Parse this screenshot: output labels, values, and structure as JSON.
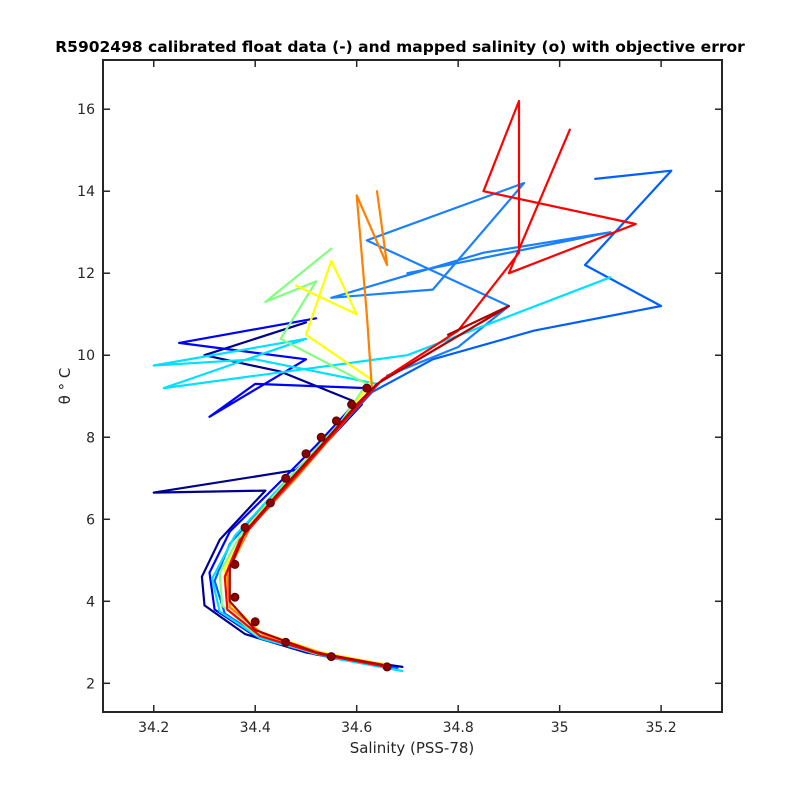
{
  "chart_data": {
    "type": "line",
    "title": "R5902498 calibrated float data (-) and mapped salinity (o) with objective error",
    "xlabel": "Salinity (PSS-78)",
    "ylabel": "θ ° C",
    "xlim": [
      34.1,
      35.32
    ],
    "ylim": [
      1.3,
      17.2
    ],
    "xticks": [
      34.2,
      34.4,
      34.6,
      34.8,
      35,
      35.2
    ],
    "xtick_labels": [
      "34.2",
      "34.4",
      "34.6",
      "34.8",
      "35",
      "35.2"
    ],
    "yticks": [
      2,
      4,
      6,
      8,
      10,
      12,
      14,
      16
    ],
    "ytick_labels": [
      "2",
      "4",
      "6",
      "8",
      "10",
      "12",
      "14",
      "16"
    ],
    "grid": false,
    "colormap": "jet",
    "colormap_stops": [
      "#00008f",
      "#0000ff",
      "#0080ff",
      "#00ffff",
      "#80ff80",
      "#ffff00",
      "#ff8000",
      "#ff0000",
      "#800000"
    ],
    "mapped_marker_color": "#8b0000",
    "base_profile": [
      {
        "s": 34.67,
        "t": 2.35
      },
      {
        "s": 34.58,
        "t": 2.55
      },
      {
        "s": 34.48,
        "t": 2.85
      },
      {
        "s": 34.4,
        "t": 3.3
      },
      {
        "s": 34.35,
        "t": 3.9
      },
      {
        "s": 34.345,
        "t": 4.6
      },
      {
        "s": 34.37,
        "t": 5.3
      },
      {
        "s": 34.42,
        "t": 6.1
      },
      {
        "s": 34.48,
        "t": 6.9
      },
      {
        "s": 34.53,
        "t": 7.7
      },
      {
        "s": 34.58,
        "t": 8.4
      },
      {
        "s": 34.63,
        "t": 9.1
      },
      {
        "s": 34.66,
        "t": 9.5
      }
    ],
    "mapped_salinity": [
      {
        "s": 34.66,
        "t": 2.4
      },
      {
        "s": 34.55,
        "t": 2.65
      },
      {
        "s": 34.46,
        "t": 3.0
      },
      {
        "s": 34.4,
        "t": 3.5
      },
      {
        "s": 34.36,
        "t": 4.1
      },
      {
        "s": 34.36,
        "t": 4.9
      },
      {
        "s": 34.38,
        "t": 5.8
      },
      {
        "s": 34.43,
        "t": 6.4
      },
      {
        "s": 34.46,
        "t": 7.0
      },
      {
        "s": 34.5,
        "t": 7.6
      },
      {
        "s": 34.53,
        "t": 8.0
      },
      {
        "s": 34.56,
        "t": 8.4
      },
      {
        "s": 34.59,
        "t": 8.8
      },
      {
        "s": 34.62,
        "t": 9.2
      }
    ],
    "series": [
      {
        "color": "#00008f",
        "values": [
          {
            "s": 34.69,
            "t": 2.4
          },
          {
            "s": 34.5,
            "t": 2.75
          },
          {
            "s": 34.38,
            "t": 3.2
          },
          {
            "s": 34.3,
            "t": 3.9
          },
          {
            "s": 34.295,
            "t": 4.6
          },
          {
            "s": 34.33,
            "t": 5.5
          },
          {
            "s": 34.39,
            "t": 6.3
          },
          {
            "s": 34.42,
            "t": 6.7
          },
          {
            "s": 34.2,
            "t": 6.65
          },
          {
            "s": 34.48,
            "t": 7.2
          },
          {
            "s": 34.55,
            "t": 8.0
          },
          {
            "s": 34.61,
            "t": 8.8
          },
          {
            "s": 34.45,
            "t": 9.6
          },
          {
            "s": 34.3,
            "t": 10.0
          },
          {
            "s": 34.5,
            "t": 10.8
          }
        ]
      },
      {
        "color": "#0000ff",
        "values": [
          {
            "s": 34.68,
            "t": 2.38
          },
          {
            "s": 34.52,
            "t": 2.7
          },
          {
            "s": 34.4,
            "t": 3.15
          },
          {
            "s": 34.32,
            "t": 3.8
          },
          {
            "s": 34.31,
            "t": 4.7
          },
          {
            "s": 34.35,
            "t": 5.7
          },
          {
            "s": 34.44,
            "t": 6.8
          },
          {
            "s": 34.52,
            "t": 7.8
          },
          {
            "s": 34.58,
            "t": 8.6
          },
          {
            "s": 34.62,
            "t": 9.2
          },
          {
            "s": 34.4,
            "t": 9.3
          },
          {
            "s": 34.31,
            "t": 8.5
          },
          {
            "s": 34.5,
            "t": 9.9
          },
          {
            "s": 34.25,
            "t": 10.3
          },
          {
            "s": 34.52,
            "t": 10.9
          }
        ]
      },
      {
        "color": "#0060ff",
        "values": [
          {
            "s": 34.68,
            "t": 2.36
          },
          {
            "s": 34.55,
            "t": 2.62
          },
          {
            "s": 34.42,
            "t": 3.05
          },
          {
            "s": 34.34,
            "t": 3.7
          },
          {
            "s": 34.32,
            "t": 4.5
          },
          {
            "s": 34.35,
            "t": 5.4
          },
          {
            "s": 34.42,
            "t": 6.4
          },
          {
            "s": 34.5,
            "t": 7.4
          },
          {
            "s": 34.57,
            "t": 8.3
          },
          {
            "s": 34.63,
            "t": 9.1
          },
          {
            "s": 34.75,
            "t": 9.9
          },
          {
            "s": 34.95,
            "t": 10.6
          },
          {
            "s": 35.2,
            "t": 11.2
          },
          {
            "s": 35.05,
            "t": 12.2
          },
          {
            "s": 35.22,
            "t": 14.5
          },
          {
            "s": 35.07,
            "t": 14.3
          }
        ]
      },
      {
        "color": "#1a80ff",
        "values": [
          {
            "s": 34.66,
            "t": 9.5
          },
          {
            "s": 34.8,
            "t": 10.2
          },
          {
            "s": 34.9,
            "t": 11.2
          },
          {
            "s": 34.62,
            "t": 12.8
          },
          {
            "s": 34.93,
            "t": 14.2
          },
          {
            "s": 34.75,
            "t": 11.6
          },
          {
            "s": 34.55,
            "t": 11.4
          },
          {
            "s": 34.85,
            "t": 12.5
          },
          {
            "s": 35.1,
            "t": 13.0
          },
          {
            "s": 34.7,
            "t": 12.0
          }
        ]
      },
      {
        "color": "#00e0ff",
        "values": [
          {
            "s": 34.69,
            "t": 2.3
          },
          {
            "s": 34.56,
            "t": 2.6
          },
          {
            "s": 34.41,
            "t": 3.1
          },
          {
            "s": 34.33,
            "t": 3.75
          },
          {
            "s": 34.315,
            "t": 4.55
          },
          {
            "s": 34.36,
            "t": 5.6
          },
          {
            "s": 34.45,
            "t": 6.8
          },
          {
            "s": 34.56,
            "t": 8.2
          },
          {
            "s": 34.64,
            "t": 9.3
          },
          {
            "s": 34.4,
            "t": 9.9
          },
          {
            "s": 34.2,
            "t": 9.75
          },
          {
            "s": 34.5,
            "t": 10.4
          },
          {
            "s": 34.22,
            "t": 9.2
          },
          {
            "s": 34.7,
            "t": 10.0
          },
          {
            "s": 35.1,
            "t": 11.9
          }
        ]
      },
      {
        "color": "#80ff80",
        "values": [
          {
            "s": 34.66,
            "t": 2.42
          },
          {
            "s": 34.52,
            "t": 2.72
          },
          {
            "s": 34.4,
            "t": 3.2
          },
          {
            "s": 34.335,
            "t": 3.9
          },
          {
            "s": 34.33,
            "t": 4.7
          },
          {
            "s": 34.37,
            "t": 5.6
          },
          {
            "s": 34.46,
            "t": 6.9
          },
          {
            "s": 34.57,
            "t": 8.4
          },
          {
            "s": 34.62,
            "t": 9.3
          },
          {
            "s": 34.45,
            "t": 10.4
          },
          {
            "s": 34.52,
            "t": 11.8
          },
          {
            "s": 34.42,
            "t": 11.3
          },
          {
            "s": 34.55,
            "t": 12.6
          }
        ]
      },
      {
        "color": "#ffff00",
        "values": [
          {
            "s": 34.66,
            "t": 2.45
          },
          {
            "s": 34.53,
            "t": 2.75
          },
          {
            "s": 34.41,
            "t": 3.25
          },
          {
            "s": 34.35,
            "t": 3.95
          },
          {
            "s": 34.34,
            "t": 4.8
          },
          {
            "s": 34.39,
            "t": 5.9
          },
          {
            "s": 34.48,
            "t": 7.1
          },
          {
            "s": 34.58,
            "t": 8.5
          },
          {
            "s": 34.63,
            "t": 9.4
          },
          {
            "s": 34.5,
            "t": 10.5
          },
          {
            "s": 34.55,
            "t": 12.3
          },
          {
            "s": 34.6,
            "t": 11.0
          },
          {
            "s": 34.48,
            "t": 11.7
          }
        ]
      },
      {
        "color": "#ff8000",
        "values": [
          {
            "s": 34.665,
            "t": 2.43
          },
          {
            "s": 34.54,
            "t": 2.7
          },
          {
            "s": 34.415,
            "t": 3.2
          },
          {
            "s": 34.35,
            "t": 3.85
          },
          {
            "s": 34.345,
            "t": 4.7
          },
          {
            "s": 34.39,
            "t": 5.8
          },
          {
            "s": 34.48,
            "t": 7.0
          },
          {
            "s": 34.57,
            "t": 8.3
          },
          {
            "s": 34.63,
            "t": 9.2
          },
          {
            "s": 34.62,
            "t": 11.0
          },
          {
            "s": 34.6,
            "t": 13.9
          },
          {
            "s": 34.66,
            "t": 12.2
          },
          {
            "s": 34.64,
            "t": 14.0
          }
        ]
      },
      {
        "color": "#ff0000",
        "values": [
          {
            "s": 34.66,
            "t": 2.4
          },
          {
            "s": 34.53,
            "t": 2.7
          },
          {
            "s": 34.41,
            "t": 3.15
          },
          {
            "s": 34.345,
            "t": 3.8
          },
          {
            "s": 34.34,
            "t": 4.6
          },
          {
            "s": 34.37,
            "t": 5.5
          },
          {
            "s": 34.44,
            "t": 6.5
          },
          {
            "s": 34.52,
            "t": 7.6
          },
          {
            "s": 34.59,
            "t": 8.6
          },
          {
            "s": 34.65,
            "t": 9.4
          },
          {
            "s": 34.8,
            "t": 10.6
          },
          {
            "s": 34.92,
            "t": 12.5
          },
          {
            "s": 34.92,
            "t": 16.2
          },
          {
            "s": 34.85,
            "t": 14.0
          },
          {
            "s": 35.15,
            "t": 13.2
          },
          {
            "s": 34.9,
            "t": 12.0
          },
          {
            "s": 35.02,
            "t": 15.5
          }
        ]
      },
      {
        "color": "#b00000",
        "values": [
          {
            "s": 34.65,
            "t": 2.45
          },
          {
            "s": 34.52,
            "t": 2.75
          },
          {
            "s": 34.4,
            "t": 3.3
          },
          {
            "s": 34.35,
            "t": 4.0
          },
          {
            "s": 34.35,
            "t": 4.8
          },
          {
            "s": 34.38,
            "t": 5.7
          },
          {
            "s": 34.45,
            "t": 6.7
          },
          {
            "s": 34.53,
            "t": 7.8
          },
          {
            "s": 34.6,
            "t": 8.8
          },
          {
            "s": 34.64,
            "t": 9.3
          },
          {
            "s": 34.9,
            "t": 11.2
          },
          {
            "s": 34.78,
            "t": 10.5
          }
        ]
      }
    ]
  }
}
